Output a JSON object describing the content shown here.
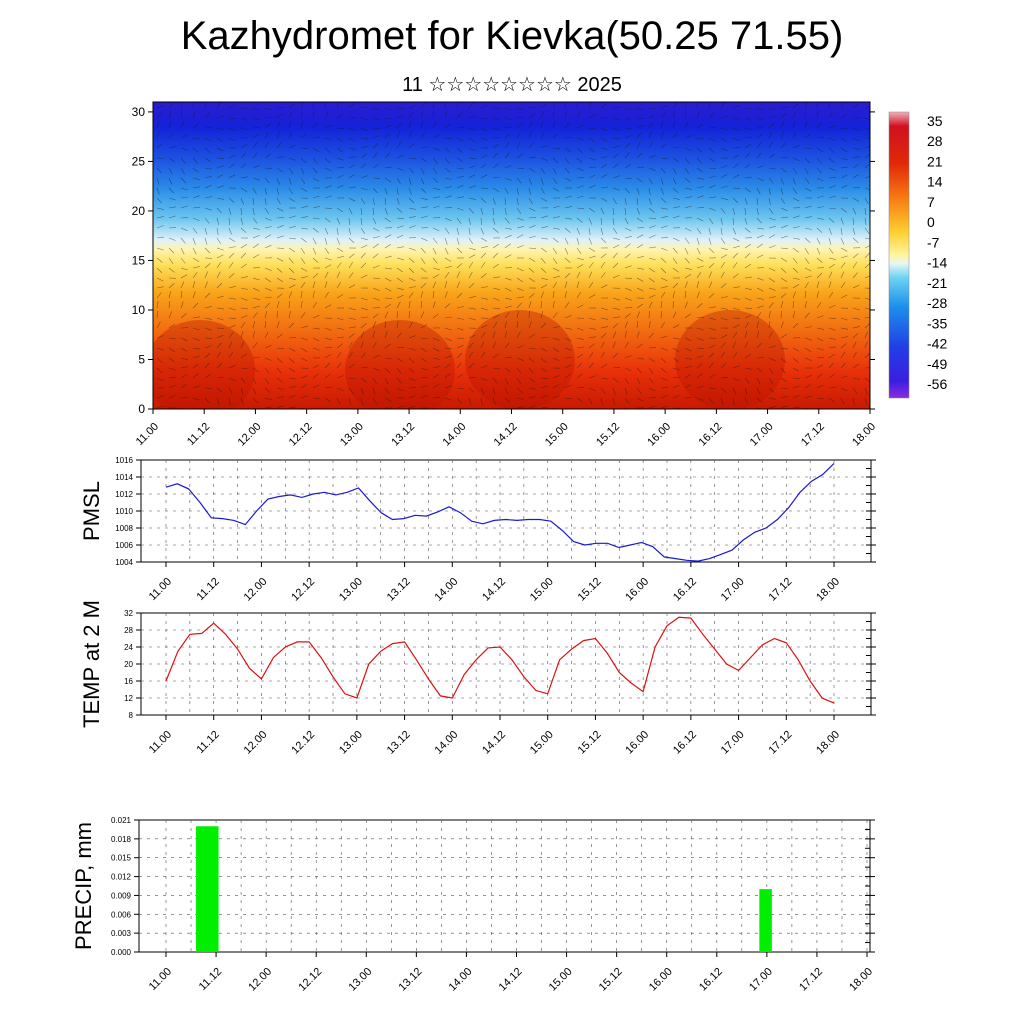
{
  "title": "Kazhydromet for Kievka(50.25 71.55)",
  "subtitle": "11 ☆☆☆☆☆☆☆☆ 2025",
  "time_ticks": [
    "11.00",
    "11.12",
    "12.00",
    "12.12",
    "13.00",
    "13.12",
    "14.00",
    "14.12",
    "15.00",
    "15.12",
    "16.00",
    "16.12",
    "17.00",
    "17.12",
    "18.00"
  ],
  "colors": {
    "pmsl_line": "#1a1ad6",
    "temp_line": "#e01010",
    "precip_bar": "#00ee00"
  },
  "chart_data": [
    {
      "type": "heatmap",
      "name": "",
      "x": [
        "11.00",
        "11.12",
        "12.00",
        "12.12",
        "13.00",
        "13.12",
        "14.00",
        "14.12",
        "15.00",
        "15.12",
        "16.00",
        "16.12",
        "17.00",
        "17.12",
        "18.00"
      ],
      "y_ticks": [
        0,
        5,
        10,
        15,
        20,
        25,
        30
      ],
      "ylim": [
        0,
        31
      ],
      "colorbar_labels": [
        "35",
        "28",
        "21",
        "14",
        "7",
        "0",
        "-7",
        "-14",
        "-21",
        "-28",
        "-35",
        "-42",
        "-49",
        "-56"
      ],
      "colorbar_range": [
        -60,
        38
      ],
      "overlay": "wind barbs",
      "grid": false
    },
    {
      "type": "line",
      "ylabel": "PMSL",
      "ylim": [
        1004,
        1016
      ],
      "y_ticks": [
        "1004",
        "1006",
        "1008",
        "1010",
        "1012",
        "1014",
        "1016"
      ],
      "values": [
        1012.8,
        1013.2,
        1012.6,
        1011.0,
        1009.2,
        1009.1,
        1008.9,
        1008.4,
        1010.0,
        1011.4,
        1011.7,
        1011.9,
        1011.6,
        1012.0,
        1012.2,
        1011.9,
        1012.2,
        1012.7,
        1011.2,
        1009.8,
        1009.0,
        1009.1,
        1009.5,
        1009.4,
        1009.9,
        1010.5,
        1009.8,
        1008.8,
        1008.5,
        1008.9,
        1009.0,
        1008.9,
        1009.0,
        1009.0,
        1008.8,
        1007.7,
        1006.4,
        1006.0,
        1006.2,
        1006.2,
        1005.7,
        1006.0,
        1006.3,
        1005.8,
        1004.6,
        1004.4,
        1004.2,
        1004.1,
        1004.4,
        1004.9,
        1005.4,
        1006.6,
        1007.5,
        1008.0,
        1009.0,
        1010.4,
        1012.2,
        1013.5,
        1014.3,
        1015.6
      ],
      "grid": true
    },
    {
      "type": "line",
      "ylabel": "TEMP at 2 M",
      "ylim": [
        8,
        32
      ],
      "y_ticks": [
        "8",
        "12",
        "16",
        "20",
        "24",
        "28",
        "32"
      ],
      "values": [
        16.0,
        23.0,
        27.0,
        27.2,
        29.6,
        27.0,
        23.5,
        19.0,
        16.5,
        21.5,
        24.0,
        25.2,
        25.2,
        21.5,
        17.0,
        13.0,
        12.0,
        20.0,
        23.0,
        24.8,
        25.2,
        21.0,
        16.5,
        12.5,
        12.0,
        17.5,
        21.0,
        23.8,
        24.0,
        21.0,
        17.0,
        13.8,
        13.0,
        21.0,
        23.5,
        25.5,
        26.0,
        22.5,
        18.0,
        15.5,
        13.5,
        24.0,
        29.0,
        31.0,
        30.8,
        27.0,
        23.5,
        20.0,
        18.5,
        21.5,
        24.5,
        26.0,
        25.0,
        21.0,
        16.0,
        12.0,
        10.8
      ],
      "grid": true
    },
    {
      "type": "bar",
      "ylabel": "PRECIP, mm",
      "ylim": [
        0,
        0.021
      ],
      "y_ticks": [
        "0.000",
        "0.003",
        "0.006",
        "0.009",
        "0.012",
        "0.015",
        "0.018",
        "0.021"
      ],
      "bars": [
        {
          "x_start_index": 0.6,
          "x_end_index": 1.05,
          "value": 0.02
        },
        {
          "x_start_index": 11.85,
          "x_end_index": 12.1,
          "value": 0.01
        }
      ],
      "grid": true
    }
  ]
}
